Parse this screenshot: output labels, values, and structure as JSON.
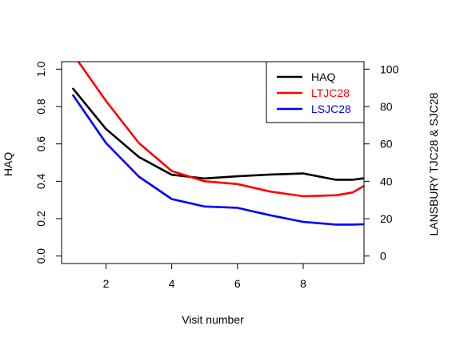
{
  "chart_data": {
    "type": "line",
    "xlabel": "Visit number",
    "ylabel_left": "HAQ",
    "ylabel_right": "LANSBURY TJC28 & SJC28",
    "x_ticks": [
      2,
      4,
      6,
      8
    ],
    "xlim": [
      0.65,
      9.85
    ],
    "ylim_left": [
      -0.04,
      1.04
    ],
    "y_ticks_left": [
      0.0,
      0.2,
      0.4,
      0.6,
      0.8,
      1.0
    ],
    "y_tick_labels_left": [
      "0.0",
      "0.2",
      "0.4",
      "0.6",
      "0.8",
      "1.0"
    ],
    "ylim_right": [
      -4,
      104
    ],
    "y_ticks_right": [
      0,
      20,
      40,
      60,
      80,
      100
    ],
    "y_tick_labels_right": [
      "0",
      "20",
      "40",
      "60",
      "80",
      "100"
    ],
    "x": [
      1,
      2,
      3,
      4,
      5,
      6,
      7,
      8,
      9,
      9.5,
      9.85
    ],
    "series": [
      {
        "name": "HAQ",
        "axis": "left",
        "color": "#000000",
        "values": [
          0.895,
          0.68,
          0.53,
          0.435,
          0.415,
          0.427,
          0.436,
          0.442,
          0.408,
          0.408,
          0.416
        ]
      },
      {
        "name": "LTJC28",
        "axis": "right",
        "color": "#ff0000",
        "values": [
          108,
          83,
          60.5,
          45.5,
          40,
          38.5,
          34.5,
          32,
          32.5,
          34,
          37.5
        ]
      },
      {
        "name": "LSJC28",
        "axis": "right",
        "color": "#0000ff",
        "values": [
          86,
          60.5,
          42.5,
          30.5,
          26.5,
          25.8,
          21.8,
          18.3,
          16.8,
          16.8,
          17
        ]
      }
    ],
    "legend_position": "top-right",
    "grid": false
  }
}
